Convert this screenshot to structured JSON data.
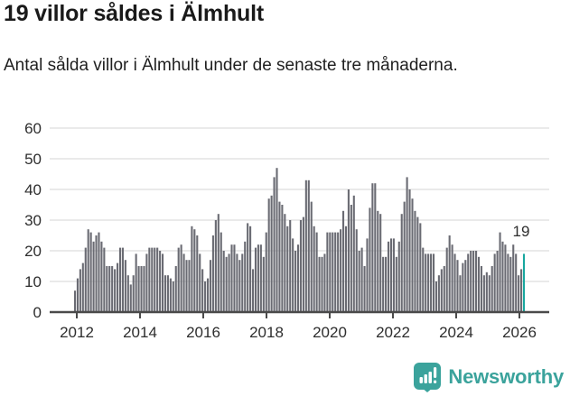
{
  "title": "19 villor såldes i Älmhult",
  "subtitle": "Antal sålda villor i Älmhult under de senaste tre månaderna.",
  "annotation": {
    "label": "19"
  },
  "branding": {
    "name": "Newsworthy",
    "icon": "bar-chart-speech-bubble-icon"
  },
  "colors": {
    "bar": "#6a6b73",
    "highlight": "#18a79f",
    "axis": "#4a4a4a",
    "grid": "#e4e4e4",
    "label_text": "#2e2e2e",
    "brand": "#3ba39c"
  },
  "chart_data": {
    "type": "bar",
    "title": "19 villor såldes i Älmhult",
    "xlabel": "",
    "ylabel": "",
    "frequency": "monthly",
    "x_start": "2012-01",
    "x_end": "2026-02",
    "x_tick_labels": [
      "2012",
      "2014",
      "2016",
      "2018",
      "2020",
      "2022",
      "2024",
      "2026"
    ],
    "y_ticks": [
      0,
      10,
      20,
      30,
      40,
      50,
      60
    ],
    "ylim": [
      0,
      60
    ],
    "grid": "horizontal",
    "legend": "none",
    "highlight_last": true,
    "highlight_value": 19,
    "values": [
      7,
      11,
      14,
      16,
      21,
      27,
      26,
      23,
      25,
      26,
      23,
      21,
      15,
      15,
      15,
      14,
      16,
      21,
      21,
      17,
      12,
      9,
      12,
      19,
      15,
      15,
      15,
      19,
      21,
      21,
      21,
      21,
      20,
      19,
      12,
      12,
      11,
      10,
      15,
      21,
      22,
      19,
      17,
      17,
      28,
      27,
      25,
      19,
      14,
      10,
      11,
      17,
      25,
      30,
      32,
      26,
      20,
      18,
      19,
      22,
      22,
      19,
      17,
      19,
      23,
      29,
      28,
      14,
      21,
      22,
      22,
      18,
      26,
      37,
      38,
      44,
      47,
      36,
      35,
      32,
      28,
      30,
      24,
      20,
      22,
      30,
      31,
      43,
      43,
      36,
      28,
      26,
      18,
      18,
      19,
      26,
      26,
      26,
      26,
      26,
      27,
      33,
      28,
      40,
      35,
      38,
      27,
      20,
      21,
      15,
      24,
      34,
      42,
      42,
      33,
      32,
      18,
      18,
      23,
      24,
      24,
      18,
      23,
      32,
      36,
      44,
      40,
      37,
      33,
      31,
      29,
      21,
      19,
      19,
      19,
      19,
      10,
      12,
      14,
      15,
      21,
      25,
      22,
      19,
      17,
      12,
      16,
      17,
      19,
      20,
      20,
      20,
      18,
      15,
      12,
      13,
      12,
      15,
      19,
      20,
      26,
      23,
      22,
      19,
      18,
      22,
      19,
      12,
      14,
      19
    ]
  }
}
